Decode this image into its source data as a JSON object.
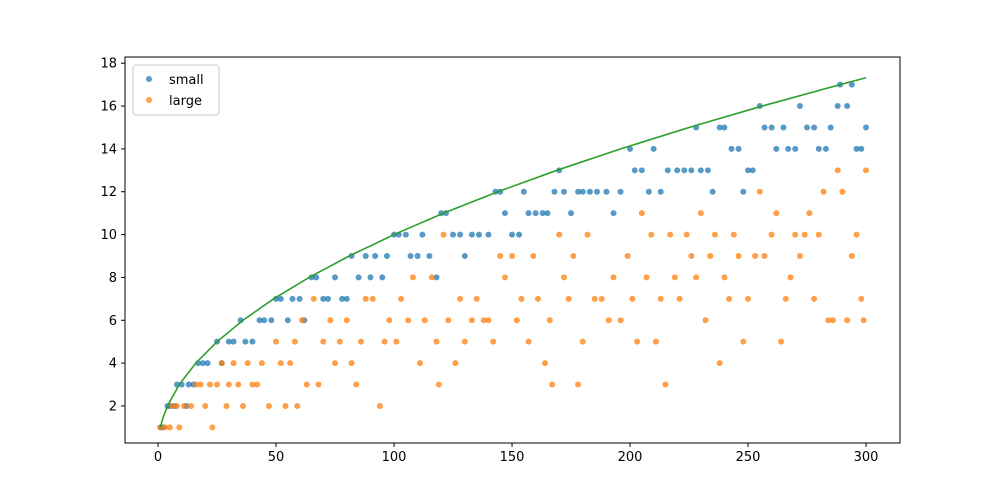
{
  "chart_data": {
    "type": "scatter",
    "xlim": [
      -14,
      314.4
    ],
    "ylim": [
      0.27,
      18.29
    ],
    "xticks": [
      0,
      50,
      100,
      150,
      200,
      250,
      300
    ],
    "yticks": [
      2,
      4,
      6,
      8,
      10,
      12,
      14,
      16,
      18
    ],
    "legend": "upper left",
    "series": [
      {
        "name": "small",
        "color": "#1f77b4",
        "kind": "scatter",
        "x": [
          1,
          2,
          4,
          5,
          7,
          8,
          10,
          12,
          13,
          15,
          17,
          19,
          21,
          25,
          27,
          30,
          32,
          35,
          37,
          40,
          43,
          45,
          48,
          50,
          52,
          55,
          57,
          60,
          62,
          65,
          67,
          70,
          72,
          75,
          78,
          80,
          82,
          85,
          88,
          90,
          92,
          95,
          97,
          100,
          102,
          105,
          107,
          110,
          112,
          115,
          118,
          120,
          122,
          125,
          128,
          130,
          133,
          136,
          140,
          143,
          145,
          147,
          150,
          153,
          155,
          157,
          160,
          163,
          165,
          168,
          170,
          172,
          175,
          178,
          180,
          183,
          186,
          190,
          193,
          196,
          200,
          202,
          205,
          208,
          210,
          213,
          216,
          220,
          223,
          226,
          228,
          230,
          233,
          235,
          238,
          240,
          243,
          246,
          248,
          250,
          252,
          255,
          257,
          260,
          262,
          265,
          267,
          270,
          272,
          275,
          278,
          280,
          283,
          285,
          288,
          289,
          292,
          294,
          296,
          298,
          300
        ],
        "values": [
          1,
          1,
          2,
          2,
          2,
          3,
          3,
          2,
          3,
          3,
          4,
          4,
          4,
          5,
          4,
          5,
          5,
          6,
          5,
          5,
          6,
          6,
          6,
          7,
          7,
          6,
          7,
          7,
          6,
          8,
          8,
          7,
          7,
          8,
          7,
          7,
          9,
          8,
          9,
          8,
          9,
          8,
          9,
          10,
          10,
          10,
          9,
          9,
          10,
          9,
          8,
          11,
          11,
          10,
          10,
          9,
          10,
          10,
          10,
          12,
          12,
          11,
          10,
          10,
          12,
          11,
          11,
          11,
          11,
          12,
          13,
          12,
          11,
          12,
          12,
          12,
          12,
          12,
          11,
          12,
          14,
          13,
          13,
          12,
          14,
          12,
          13,
          13,
          13,
          13,
          15,
          13,
          13,
          12,
          15,
          15,
          14,
          14,
          12,
          13,
          13,
          16,
          15,
          15,
          14,
          15,
          14,
          14,
          16,
          15,
          15,
          14,
          14,
          15,
          16,
          17,
          16,
          17,
          14,
          14,
          15
        ]
      },
      {
        "name": "large",
        "color": "#ff7f0e",
        "kind": "scatter",
        "x": [
          1,
          3,
          5,
          6,
          8,
          9,
          11,
          14,
          16,
          18,
          20,
          22,
          23,
          25,
          27,
          29,
          30,
          32,
          34,
          36,
          38,
          40,
          42,
          44,
          47,
          50,
          52,
          54,
          56,
          58,
          59,
          61,
          63,
          66,
          68,
          70,
          73,
          75,
          77,
          80,
          82,
          84,
          86,
          88,
          91,
          94,
          96,
          98,
          101,
          103,
          106,
          108,
          111,
          113,
          116,
          118,
          119,
          121,
          123,
          126,
          128,
          130,
          133,
          135,
          138,
          140,
          142,
          145,
          147,
          150,
          152,
          154,
          157,
          159,
          161,
          164,
          166,
          167,
          170,
          172,
          174,
          176,
          178,
          180,
          182,
          185,
          188,
          191,
          193,
          196,
          199,
          201,
          203,
          205,
          207,
          209,
          211,
          213,
          215,
          217,
          219,
          221,
          224,
          226,
          228,
          230,
          232,
          234,
          236,
          238,
          240,
          242,
          244,
          246,
          248,
          250,
          253,
          255,
          257,
          260,
          262,
          264,
          266,
          268,
          270,
          272,
          274,
          276,
          278,
          280,
          282,
          284,
          286,
          288,
          290,
          292,
          294,
          296,
          298,
          299,
          300
        ],
        "values": [
          1,
          1,
          1,
          2,
          2,
          1,
          2,
          2,
          3,
          3,
          2,
          3,
          1,
          3,
          4,
          2,
          3,
          4,
          3,
          2,
          4,
          3,
          3,
          4,
          2,
          5,
          4,
          2,
          4,
          5,
          2,
          6,
          3,
          7,
          3,
          5,
          6,
          4,
          5,
          6,
          4,
          3,
          5,
          7,
          7,
          2,
          5,
          6,
          5,
          7,
          6,
          8,
          4,
          6,
          8,
          5,
          3,
          10,
          6,
          4,
          7,
          5,
          6,
          7,
          6,
          6,
          5,
          9,
          8,
          9,
          6,
          7,
          5,
          9,
          7,
          4,
          6,
          3,
          10,
          8,
          7,
          9,
          3,
          5,
          10,
          7,
          7,
          6,
          8,
          6,
          9,
          7,
          5,
          11,
          8,
          10,
          5,
          7,
          3,
          10,
          8,
          7,
          10,
          9,
          8,
          11,
          6,
          9,
          10,
          4,
          8,
          7,
          10,
          9,
          5,
          7,
          9,
          12,
          9,
          10,
          11,
          5,
          7,
          8,
          10,
          9,
          10,
          11,
          7,
          10,
          12,
          6,
          6,
          13,
          12,
          6,
          9,
          10,
          7,
          6,
          13
        ]
      },
      {
        "color": "#2ca02c",
        "kind": "line",
        "x": [
          1,
          2,
          4,
          9,
          16,
          25,
          36,
          49,
          64,
          81,
          100,
          121,
          144,
          169,
          196,
          225,
          256,
          289,
          300
        ],
        "values": [
          1,
          1.414,
          2,
          3,
          4,
          5,
          6,
          7,
          8,
          9,
          10,
          11,
          12,
          13,
          14,
          15,
          16,
          17,
          17.32
        ]
      }
    ]
  }
}
